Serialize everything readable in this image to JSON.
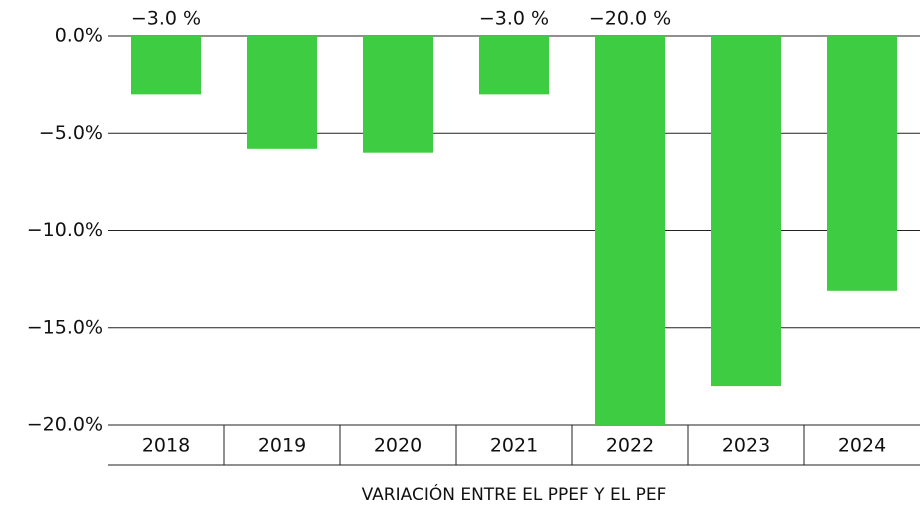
{
  "chart_data": {
    "type": "bar",
    "x_label": "VARIACIÓN ENTRE EL PPEF Y EL PEF",
    "categories": [
      "2018",
      "2019",
      "2020",
      "2021",
      "2022",
      "2023",
      "2024"
    ],
    "values": [
      -3.0,
      -5.8,
      -6.0,
      -3.0,
      -20.0,
      -18.0,
      -13.1
    ],
    "value_labels": [
      "−3.0 %",
      null,
      null,
      "−3.0 %",
      "−20.0 %",
      null,
      null
    ],
    "color": "#3dcc42",
    "ylim": [
      -20,
      0
    ],
    "yticks": [
      {
        "value": 0,
        "label": "0.0%"
      },
      {
        "value": -5,
        "label": "−5.0%"
      },
      {
        "value": -10,
        "label": "−10.0%"
      },
      {
        "value": -15,
        "label": "−15.0%"
      },
      {
        "value": -20,
        "label": "−20.0%"
      }
    ],
    "grid": true
  }
}
